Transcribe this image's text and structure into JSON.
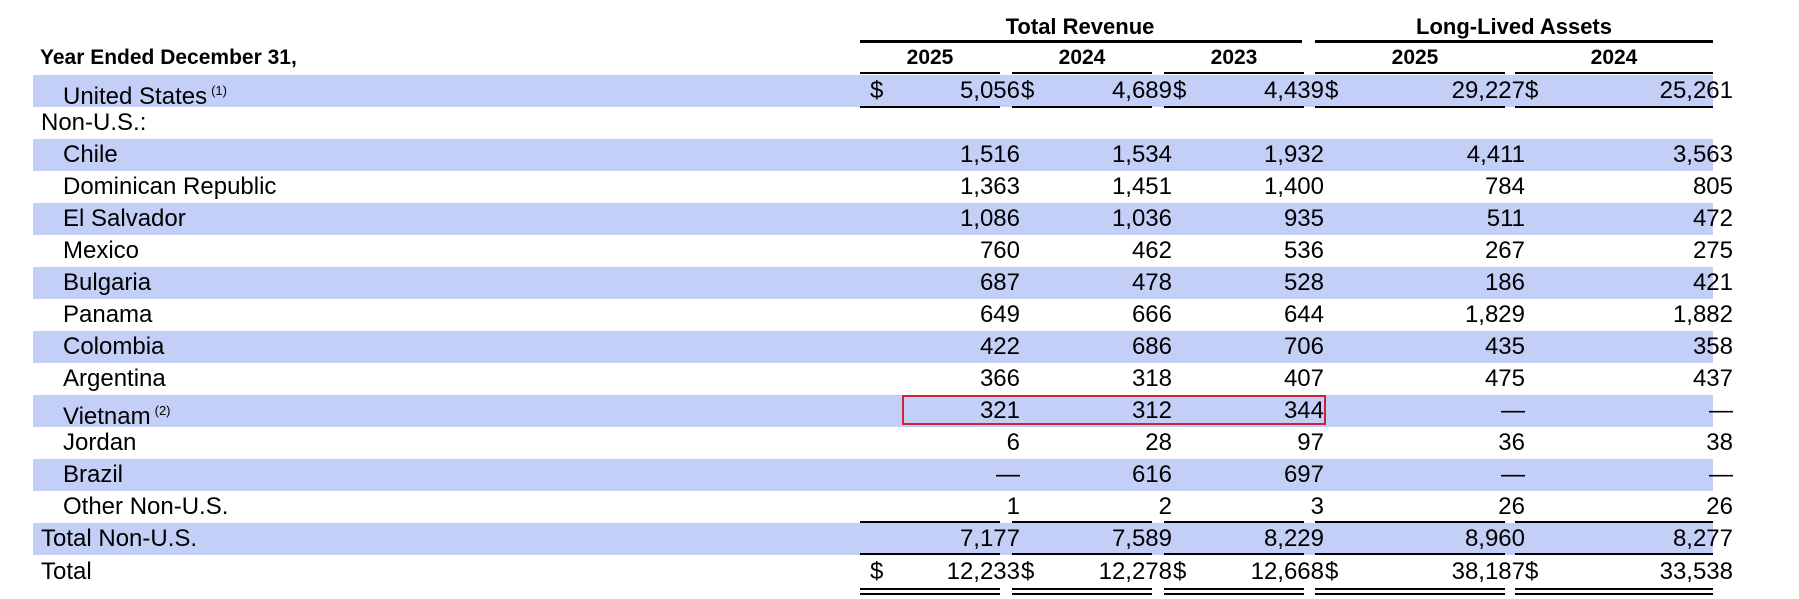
{
  "header_label": "Year Ended December 31,",
  "groups": [
    {
      "title": "Total Revenue"
    },
    {
      "title": "Long-Lived Assets"
    }
  ],
  "columns": [
    "2025",
    "2024",
    "2023",
    "2025",
    "2024"
  ],
  "section_label": "Non-U.S.:",
  "rows": [
    {
      "label": "United States",
      "note": "(1)",
      "values": [
        "5,056",
        "4,689",
        "4,439",
        "29,227",
        "25,261"
      ]
    },
    {
      "label": "Chile",
      "values": [
        "1,516",
        "1,534",
        "1,932",
        "4,411",
        "3,563"
      ]
    },
    {
      "label": "Dominican Republic",
      "values": [
        "1,363",
        "1,451",
        "1,400",
        "784",
        "805"
      ]
    },
    {
      "label": "El Salvador",
      "values": [
        "1,086",
        "1,036",
        "935",
        "511",
        "472"
      ]
    },
    {
      "label": "Mexico",
      "values": [
        "760",
        "462",
        "536",
        "267",
        "275"
      ]
    },
    {
      "label": "Bulgaria",
      "values": [
        "687",
        "478",
        "528",
        "186",
        "421"
      ]
    },
    {
      "label": "Panama",
      "values": [
        "649",
        "666",
        "644",
        "1,829",
        "1,882"
      ]
    },
    {
      "label": "Colombia",
      "values": [
        "422",
        "686",
        "706",
        "435",
        "358"
      ]
    },
    {
      "label": "Argentina",
      "values": [
        "366",
        "318",
        "407",
        "475",
        "437"
      ]
    },
    {
      "label": "Vietnam",
      "note": "(2)",
      "values": [
        "321",
        "312",
        "344",
        "—",
        "—"
      ]
    },
    {
      "label": "Jordan",
      "values": [
        "6",
        "28",
        "97",
        "36",
        "38"
      ]
    },
    {
      "label": "Brazil",
      "values": [
        "—",
        "616",
        "697",
        "—",
        "—"
      ]
    },
    {
      "label": "Other Non-U.S.",
      "values": [
        "1",
        "2",
        "3",
        "26",
        "26"
      ]
    },
    {
      "label": "Total Non-U.S.",
      "values": [
        "7,177",
        "7,589",
        "8,229",
        "8,960",
        "8,277"
      ]
    },
    {
      "label": "Total",
      "values": [
        "12,233",
        "12,278",
        "12,668",
        "38,187",
        "33,538"
      ]
    }
  ]
}
